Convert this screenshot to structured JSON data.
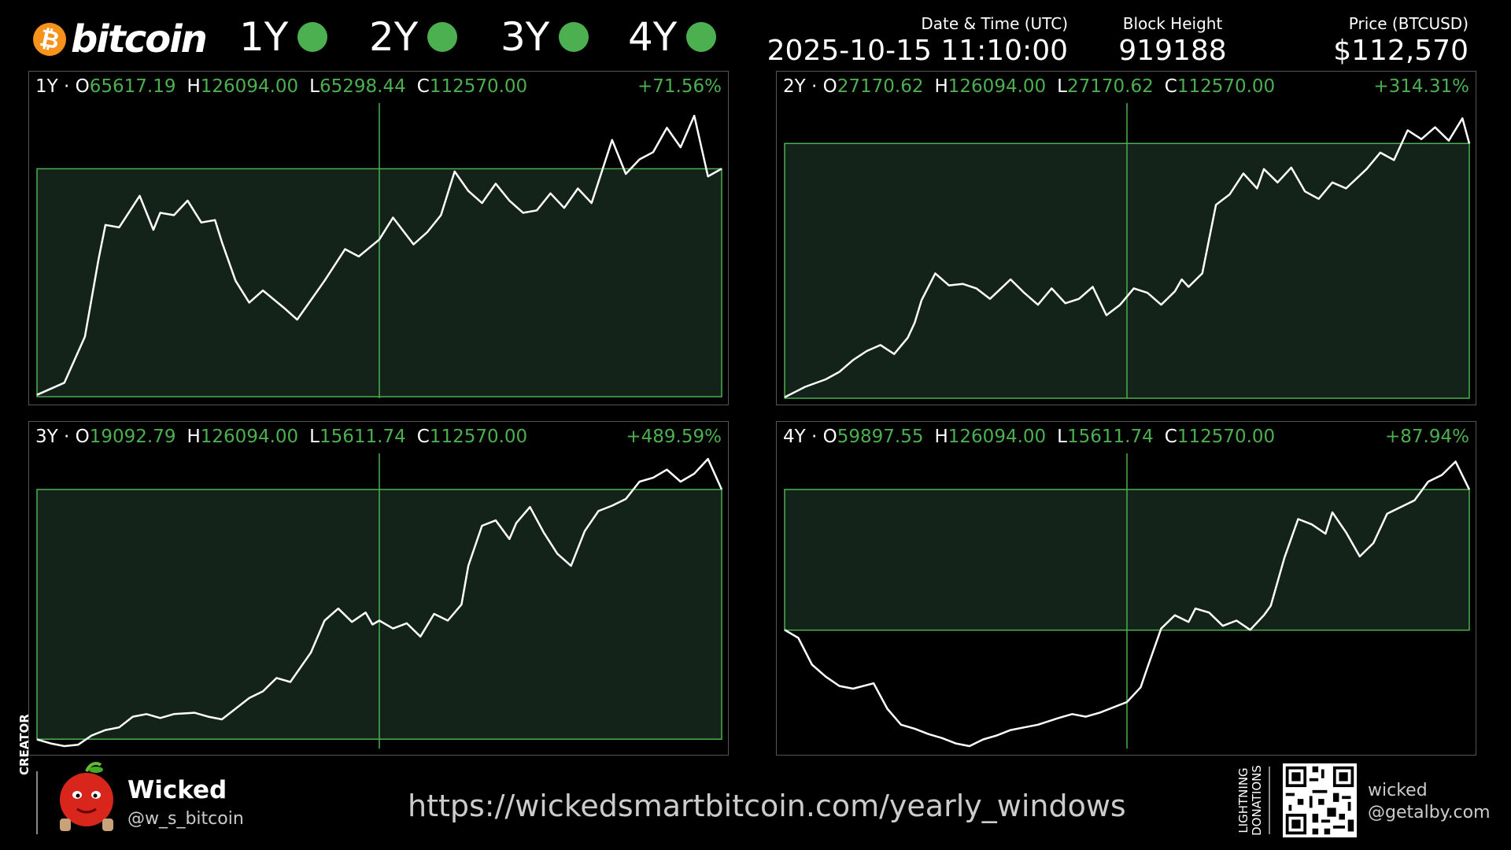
{
  "header": {
    "logo_glyph": "₿",
    "logo_text": "bitcoin",
    "periods": [
      "1Y",
      "2Y",
      "3Y",
      "4Y"
    ],
    "datetime_label": "Date & Time (UTC)",
    "datetime_value": "2025-10-15 11:10:00",
    "block_label": "Block Height",
    "block_value": "919188",
    "price_label": "Price (BTCUSD)",
    "price_value": "$112,570"
  },
  "colors": {
    "accent": "#4caf50",
    "box_fill": "#13231a",
    "line": "#ffffff",
    "bitcoin_orange": "#f7931a"
  },
  "footer": {
    "creator_label": "CREATOR",
    "creator_name": "Wicked",
    "creator_handle": "@w_s_bitcoin",
    "url": "https://wickedsmartbitcoin.com/yearly_windows",
    "lightning_label_1": "LIGHTNING",
    "lightning_label_2": "DONATIONS",
    "lightning_name": "wicked",
    "lightning_address": "@getalby.com"
  },
  "chart_data": [
    {
      "type": "line",
      "label": "1Y",
      "o": "65617.19",
      "h": "126094.00",
      "l": "65298.44",
      "c": "112570.00",
      "change": "+71.56%",
      "ylim": [
        65298.44,
        126094.0
      ],
      "x": [
        0,
        0.04,
        0.07,
        0.09,
        0.1,
        0.12,
        0.15,
        0.17,
        0.18,
        0.2,
        0.22,
        0.24,
        0.26,
        0.27,
        0.29,
        0.31,
        0.33,
        0.36,
        0.38,
        0.4,
        0.42,
        0.45,
        0.47,
        0.5,
        0.52,
        0.55,
        0.57,
        0.59,
        0.61,
        0.63,
        0.65,
        0.67,
        0.69,
        0.71,
        0.73,
        0.75,
        0.77,
        0.79,
        0.81,
        0.84,
        0.86,
        0.88,
        0.9,
        0.92,
        0.94,
        0.96,
        0.98,
        1.0
      ],
      "values": [
        66000,
        68500,
        78000,
        94000,
        101000,
        100500,
        107000,
        100000,
        103500,
        103000,
        106000,
        101500,
        102000,
        97500,
        89500,
        85000,
        87500,
        84000,
        81500,
        85500,
        89500,
        96000,
        94500,
        98000,
        102500,
        97000,
        99500,
        103000,
        112000,
        108000,
        105500,
        109500,
        106000,
        103500,
        104000,
        107500,
        104500,
        108500,
        105500,
        118500,
        111500,
        114500,
        116000,
        121000,
        117000,
        123500,
        111000,
        112570
      ]
    },
    {
      "type": "line",
      "label": "2Y",
      "o": "27170.62",
      "h": "126094.00",
      "l": "27170.62",
      "c": "112570.00",
      "change": "+314.31%",
      "ylim": [
        27170.62,
        126094.0
      ],
      "x": [
        0,
        0.03,
        0.06,
        0.08,
        0.1,
        0.12,
        0.14,
        0.16,
        0.18,
        0.19,
        0.2,
        0.22,
        0.24,
        0.26,
        0.28,
        0.3,
        0.33,
        0.35,
        0.37,
        0.39,
        0.41,
        0.43,
        0.45,
        0.47,
        0.49,
        0.51,
        0.53,
        0.55,
        0.57,
        0.58,
        0.59,
        0.61,
        0.63,
        0.65,
        0.67,
        0.69,
        0.7,
        0.72,
        0.74,
        0.76,
        0.78,
        0.8,
        0.82,
        0.85,
        0.87,
        0.89,
        0.91,
        0.93,
        0.95,
        0.97,
        0.99,
        1.0
      ],
      "values": [
        27500,
        31000,
        33500,
        36000,
        40000,
        43000,
        45000,
        42000,
        47500,
        52500,
        60000,
        69000,
        65000,
        65500,
        64000,
        60500,
        67000,
        62500,
        58500,
        64000,
        59000,
        60500,
        64500,
        55000,
        58500,
        64000,
        62500,
        58500,
        63000,
        67000,
        64500,
        69000,
        92000,
        95500,
        102500,
        97500,
        104000,
        99500,
        104500,
        96500,
        94000,
        99500,
        97500,
        104000,
        109500,
        107000,
        117000,
        114000,
        118000,
        113500,
        121000,
        112570
      ]
    },
    {
      "type": "line",
      "label": "3Y",
      "o": "19092.79",
      "h": "126094.00",
      "l": "15611.74",
      "c": "112570.00",
      "change": "+489.59%",
      "ylim": [
        15611.74,
        126094.0
      ],
      "x": [
        0,
        0.02,
        0.04,
        0.06,
        0.08,
        0.1,
        0.12,
        0.14,
        0.16,
        0.18,
        0.2,
        0.23,
        0.25,
        0.27,
        0.29,
        0.31,
        0.33,
        0.35,
        0.37,
        0.4,
        0.42,
        0.44,
        0.46,
        0.48,
        0.49,
        0.5,
        0.52,
        0.54,
        0.56,
        0.58,
        0.6,
        0.62,
        0.63,
        0.65,
        0.67,
        0.69,
        0.7,
        0.72,
        0.74,
        0.76,
        0.78,
        0.8,
        0.82,
        0.84,
        0.86,
        0.88,
        0.9,
        0.92,
        0.94,
        0.96,
        0.98,
        1.0
      ],
      "values": [
        19000,
        17500,
        16500,
        17000,
        20500,
        22500,
        23500,
        27500,
        28500,
        27000,
        28500,
        29000,
        27500,
        26500,
        30500,
        34500,
        37000,
        42000,
        40500,
        51500,
        63500,
        68000,
        63000,
        66500,
        62000,
        63500,
        60500,
        62500,
        57500,
        66000,
        63500,
        69500,
        84000,
        99000,
        101000,
        94000,
        100000,
        106000,
        96500,
        88500,
        84000,
        97000,
        104500,
        106500,
        109000,
        115500,
        117000,
        120000,
        115500,
        118500,
        124000,
        112570
      ]
    },
    {
      "type": "line",
      "label": "4Y",
      "o": "59897.55",
      "h": "126094.00",
      "l": "15611.74",
      "c": "112570.00",
      "change": "+87.94%",
      "ylim": [
        15611.74,
        126094.0
      ],
      "x": [
        0,
        0.02,
        0.04,
        0.06,
        0.08,
        0.1,
        0.13,
        0.15,
        0.17,
        0.19,
        0.21,
        0.23,
        0.25,
        0.27,
        0.29,
        0.31,
        0.33,
        0.35,
        0.37,
        0.4,
        0.42,
        0.44,
        0.46,
        0.48,
        0.5,
        0.52,
        0.53,
        0.55,
        0.57,
        0.59,
        0.6,
        0.62,
        0.64,
        0.66,
        0.68,
        0.7,
        0.71,
        0.73,
        0.75,
        0.77,
        0.79,
        0.8,
        0.82,
        0.84,
        0.86,
        0.88,
        0.9,
        0.92,
        0.94,
        0.96,
        0.98,
        1.0
      ],
      "values": [
        60000,
        57000,
        47000,
        42500,
        39000,
        38000,
        40000,
        30500,
        24500,
        23000,
        21000,
        19500,
        17500,
        16500,
        19000,
        20500,
        22500,
        23500,
        24500,
        27000,
        28500,
        27500,
        29000,
        31000,
        33000,
        38500,
        46000,
        60500,
        65500,
        63000,
        68000,
        66500,
        61500,
        63500,
        60000,
        65500,
        69000,
        87000,
        101500,
        99500,
        96000,
        104000,
        96500,
        87500,
        92500,
        103500,
        106000,
        108500,
        115500,
        118000,
        123000,
        112570
      ]
    }
  ]
}
